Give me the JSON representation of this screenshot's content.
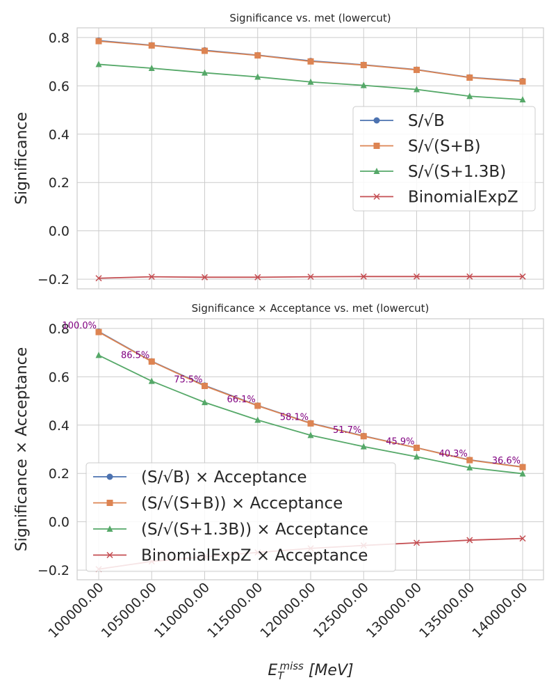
{
  "chart_data": [
    {
      "type": "line",
      "title": "Significance vs. met (lowercut)",
      "ylabel": "Significance",
      "xlabel": "",
      "ylim": [
        -0.24,
        0.84
      ],
      "yticks": [
        "−0.2",
        "0.0",
        "0.2",
        "0.4",
        "0.6",
        "0.8"
      ],
      "ytick_values": [
        -0.2,
        0.0,
        0.2,
        0.4,
        0.6,
        0.8
      ],
      "x": [
        100000,
        105000,
        110000,
        115000,
        120000,
        125000,
        130000,
        135000,
        140000
      ],
      "grid": true,
      "legend_position": "center-right",
      "series": [
        {
          "name": "S/√B",
          "color": "#4c72b0",
          "marker": "circle",
          "values": [
            0.787,
            0.768,
            0.747,
            0.727,
            0.703,
            0.687,
            0.667,
            0.635,
            0.62
          ]
        },
        {
          "name": "S/√(S+B)",
          "color": "#dd8452",
          "marker": "square",
          "values": [
            0.785,
            0.767,
            0.745,
            0.726,
            0.701,
            0.686,
            0.666,
            0.634,
            0.618
          ]
        },
        {
          "name": "S/√(S+1.3B)",
          "color": "#55a868",
          "marker": "triangle",
          "values": [
            0.689,
            0.673,
            0.654,
            0.637,
            0.616,
            0.602,
            0.585,
            0.557,
            0.543
          ]
        },
        {
          "name": "BinomialExpZ",
          "color": "#c44e52",
          "marker": "x",
          "values": [
            -0.196,
            -0.19,
            -0.192,
            -0.192,
            -0.19,
            -0.189,
            -0.189,
            -0.189,
            -0.189
          ]
        }
      ]
    },
    {
      "type": "line",
      "title": "Significance × Acceptance vs. met (lowercut)",
      "ylabel": "Significance × Acceptance",
      "xlabel": "E_T^miss [MeV]",
      "ylim": [
        -0.24,
        0.84
      ],
      "yticks": [
        "−0.2",
        "0.0",
        "0.2",
        "0.4",
        "0.6",
        "0.8"
      ],
      "ytick_values": [
        -0.2,
        0.0,
        0.2,
        0.4,
        0.6,
        0.8
      ],
      "x": [
        100000,
        105000,
        110000,
        115000,
        120000,
        125000,
        130000,
        135000,
        140000
      ],
      "xticks": [
        "100000.00",
        "105000.00",
        "110000.00",
        "115000.00",
        "120000.00",
        "125000.00",
        "130000.00",
        "135000.00",
        "140000.00"
      ],
      "grid": true,
      "legend_position": "lower-left",
      "annotations": [
        "100.0%",
        "86.5%",
        "75.5%",
        "66.1%",
        "58.1%",
        "51.7%",
        "45.9%",
        "40.3%",
        "36.6%"
      ],
      "series": [
        {
          "name": "(S/√B) × Acceptance",
          "color": "#4c72b0",
          "marker": "circle",
          "values": [
            0.787,
            0.664,
            0.564,
            0.481,
            0.408,
            0.355,
            0.306,
            0.256,
            0.227
          ]
        },
        {
          "name": "(S/√(S+B)) × Acceptance",
          "color": "#dd8452",
          "marker": "square",
          "values": [
            0.785,
            0.663,
            0.562,
            0.48,
            0.407,
            0.354,
            0.306,
            0.255,
            0.226
          ]
        },
        {
          "name": "(S/√(S+1.3B)) × Acceptance",
          "color": "#55a868",
          "marker": "triangle",
          "values": [
            0.689,
            0.582,
            0.494,
            0.421,
            0.358,
            0.311,
            0.269,
            0.224,
            0.199
          ]
        },
        {
          "name": "BinomialExpZ × Acceptance",
          "color": "#c44e52",
          "marker": "x",
          "values": [
            -0.196,
            -0.164,
            -0.145,
            -0.127,
            -0.11,
            -0.098,
            -0.087,
            -0.076,
            -0.069
          ]
        }
      ]
    }
  ]
}
